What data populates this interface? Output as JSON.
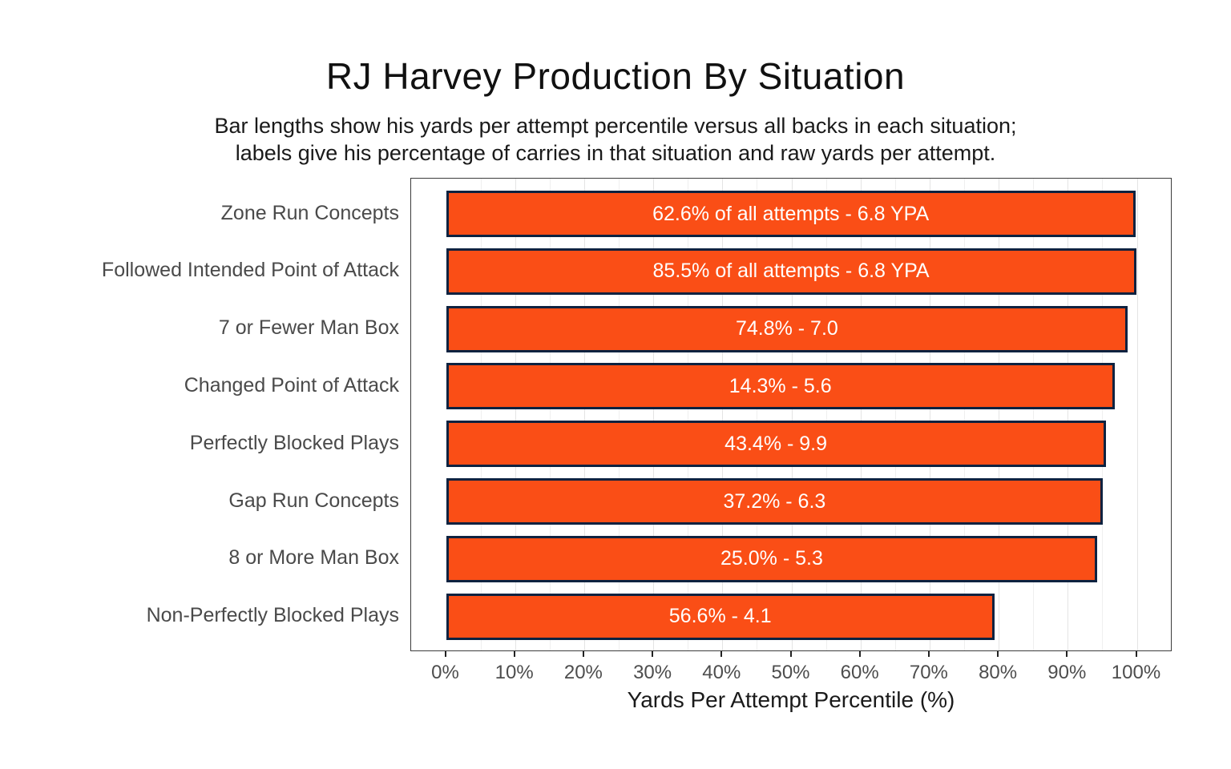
{
  "chart_data": {
    "type": "bar",
    "orientation": "horizontal",
    "title": "RJ Harvey Production By Situation",
    "subtitle_line1": "Bar lengths show his yards per attempt percentile versus all backs in each situation;",
    "subtitle_line2": "labels give his percentage of carries in that situation and raw yards per attempt.",
    "xlabel": "Yards Per Attempt Percentile (%)",
    "xlim": [
      0,
      100
    ],
    "x_tick_step": 10,
    "x_ticks": [
      "0%",
      "10%",
      "20%",
      "30%",
      "40%",
      "50%",
      "60%",
      "70%",
      "80%",
      "90%",
      "100%"
    ],
    "grid": "vertical light-gray gridlines every 5%, minor lines lighter",
    "legend": "none",
    "bars": [
      {
        "category": "Zone Run Concepts",
        "percentile": 99.8,
        "label": "62.6% of all attempts - 6.8 YPA"
      },
      {
        "category": "Followed Intended Point of Attack",
        "percentile": 99.9,
        "label": "85.5% of all attempts - 6.8 YPA"
      },
      {
        "category": "7 or Fewer Man Box",
        "percentile": 98.7,
        "label": "74.8% - 7.0"
      },
      {
        "category": "Changed Point of Attack",
        "percentile": 96.8,
        "label": "14.3% - 5.6"
      },
      {
        "category": "Perfectly Blocked Plays",
        "percentile": 95.5,
        "label": "43.4% - 9.9"
      },
      {
        "category": "Gap Run Concepts",
        "percentile": 95.1,
        "label": "37.2% - 6.3"
      },
      {
        "category": "8 or More Man Box",
        "percentile": 94.3,
        "label": "25.0% - 5.3"
      },
      {
        "category": "Non-Perfectly Blocked Plays",
        "percentile": 79.4,
        "label": "56.6% - 4.1"
      }
    ],
    "colors": {
      "bar_fill": "#fa4e16",
      "bar_outline": "#0d2240",
      "bar_label_text": "#ffffff",
      "axis_text": "#4d4d4d",
      "category_text": "#4a4a4a",
      "panel_border": "#3c3c3c",
      "grid_major": "#e4e4e4",
      "grid_minor": "#efefef",
      "title_text": "#111111"
    }
  }
}
